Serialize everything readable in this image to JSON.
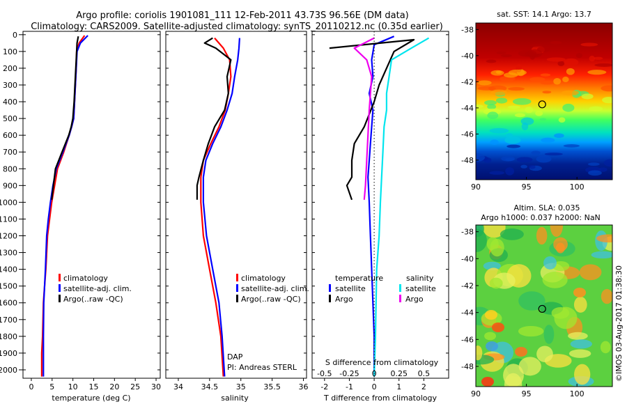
{
  "title": {
    "line1": "Argo profile: coriolis 1901081_111 12-Feb-2011 43.73S 96.56E (DM data)",
    "line2": "Climatology: CARS2009. Satellite-adjusted climatology: synTS_20110212.nc (0.35d earlier)"
  },
  "depth_ticks": [
    "0",
    "100",
    "200",
    "300",
    "400",
    "500",
    "600",
    "700",
    "800",
    "900",
    "1000",
    "1100",
    "1200",
    "1300",
    "1400",
    "1500",
    "1600",
    "1700",
    "1800",
    "1900",
    "2000"
  ],
  "colors": {
    "climatology": "#ff0000",
    "satellite": "#0000ff",
    "argo": "#000000",
    "sal_satellite": "#00e5ee",
    "sal_argo": "#ee00ee"
  },
  "chart_data": [
    {
      "type": "line",
      "xlabel": "temperature (deg C)",
      "xticks": [
        "0",
        "5",
        "10",
        "15",
        "20",
        "25",
        "30"
      ],
      "xlim": [
        -2,
        31
      ],
      "ylim": [
        2050,
        -20
      ],
      "legend": [
        "climatology",
        "satellite-adj. clim.",
        "Argo(..raw -QC)"
      ],
      "legend_position": "lower-center",
      "series": [
        {
          "name": "climatology",
          "color": "red",
          "x": [
            12.8,
            11.5,
            10.9,
            10.8,
            10.6,
            10.4,
            10.2,
            9.7,
            9.1,
            7.8,
            6.3,
            5.6,
            4.9,
            4.4,
            3.9,
            3.5,
            3.2,
            2.9,
            2.7,
            2.5,
            2.5
          ],
          "y": [
            5,
            50,
            100,
            200,
            300,
            400,
            500,
            550,
            600,
            700,
            800,
            900,
            1000,
            1100,
            1200,
            1400,
            1500,
            1600,
            1800,
            1900,
            2040
          ]
        },
        {
          "name": "satellite-adj. clim.",
          "color": "blue",
          "x": [
            13.6,
            11.8,
            11.0,
            10.8,
            10.6,
            10.4,
            10.2,
            9.7,
            9.1,
            7.6,
            6.0,
            5.2,
            4.6,
            4.1,
            3.7,
            3.4,
            3.2,
            3.0,
            2.9,
            2.9,
            2.9
          ],
          "y": [
            5,
            50,
            100,
            200,
            300,
            400,
            500,
            550,
            600,
            700,
            800,
            900,
            1000,
            1100,
            1200,
            1400,
            1500,
            1600,
            1800,
            1900,
            2040
          ]
        },
        {
          "name": "Argo(..raw -QC)",
          "color": "black",
          "x": [
            11.3,
            11.0,
            10.9,
            10.7,
            10.5,
            10.3,
            10.0,
            9.6,
            9.0,
            7.4,
            5.8,
            4.9
          ],
          "y": [
            10,
            50,
            100,
            200,
            300,
            400,
            500,
            550,
            600,
            700,
            800,
            985
          ]
        }
      ]
    },
    {
      "type": "line",
      "xlabel": "salinity",
      "xticks": [
        "34",
        "34.5",
        "35",
        "35.5",
        "36"
      ],
      "xlim": [
        33.8,
        36.05
      ],
      "ylim": [
        2050,
        -20
      ],
      "legend": [
        "climatology",
        "satellite-adj. clim.",
        "Argo(..raw -QC)"
      ],
      "legend_position": "lower-right",
      "annotations": [
        "DAP",
        "PI: Andreas STERL"
      ],
      "series": [
        {
          "name": "climatology",
          "color": "red",
          "x": [
            34.58,
            34.72,
            34.82,
            34.84,
            34.8,
            34.75,
            34.65,
            34.52,
            34.4,
            34.36,
            34.36,
            34.4,
            34.5,
            34.6,
            34.68,
            34.72
          ],
          "y": [
            20,
            80,
            150,
            250,
            350,
            450,
            550,
            650,
            750,
            850,
            1000,
            1200,
            1400,
            1600,
            1800,
            2040
          ]
        },
        {
          "name": "satellite-adj. clim.",
          "color": "blue",
          "x": [
            34.98,
            34.97,
            34.95,
            34.9,
            34.86,
            34.78,
            34.68,
            34.55,
            34.44,
            34.4,
            34.4,
            34.45,
            34.55,
            34.65,
            34.7,
            34.74
          ],
          "y": [
            20,
            80,
            150,
            250,
            350,
            450,
            550,
            650,
            750,
            850,
            1000,
            1200,
            1400,
            1600,
            1800,
            2040
          ]
        },
        {
          "name": "Argo(..raw -QC)",
          "color": "black",
          "x": [
            34.55,
            34.42,
            34.6,
            34.84,
            34.78,
            34.8,
            34.74,
            34.58,
            34.48,
            34.4,
            34.33,
            34.3,
            34.3
          ],
          "y": [
            20,
            50,
            80,
            150,
            250,
            350,
            450,
            550,
            650,
            750,
            850,
            900,
            985
          ]
        }
      ]
    },
    {
      "type": "line",
      "xlabel": "T difference from climatology",
      "xticks": [
        "-2",
        "-1",
        "0",
        "1",
        "2"
      ],
      "xlim": [
        -2.5,
        3
      ],
      "top_xlabel": "S difference from climatology",
      "top_xticks": [
        "-0.5",
        "-0.25",
        "0",
        "0.25",
        "0.5"
      ],
      "ylim": [
        2050,
        -20
      ],
      "legend_title_left": "temperature",
      "legend_title_right": "salinity",
      "legend": [
        "satellite",
        "Argo",
        "satellite",
        "Argo"
      ],
      "legend_position": "lower-center",
      "series": [
        {
          "name": "satellite",
          "quantity": "temperature",
          "color": "blue",
          "x": [
            0.8,
            0.0,
            -0.1,
            -0.05,
            -0.2,
            -0.05,
            -0.1,
            -0.15,
            -0.2,
            -0.25,
            -0.2,
            -0.15,
            -0.1,
            0.0,
            0.0
          ],
          "y": [
            10,
            60,
            150,
            250,
            350,
            450,
            550,
            650,
            750,
            850,
            1000,
            1200,
            1400,
            1800,
            2040
          ]
        },
        {
          "name": "Argo",
          "quantity": "temperature",
          "color": "black",
          "x": [
            -1.8,
            1.6,
            0.8,
            0.5,
            0.2,
            0.0,
            -0.4,
            -0.8,
            -0.9,
            -0.9,
            -1.1,
            -0.9
          ],
          "y": [
            80,
            30,
            100,
            200,
            300,
            400,
            550,
            650,
            750,
            850,
            900,
            985
          ]
        },
        {
          "name": "satellite",
          "quantity": "salinity",
          "color": "cyan",
          "x": [
            2.2,
            1.5,
            0.7,
            0.6,
            0.5,
            0.5,
            0.4,
            0.35,
            0.3,
            0.25,
            0.2,
            0.1,
            0.05,
            0.0
          ],
          "y": [
            20,
            80,
            150,
            250,
            350,
            450,
            550,
            700,
            850,
            1000,
            1200,
            1400,
            1800,
            2040
          ]
        },
        {
          "name": "Argo",
          "quantity": "salinity",
          "color": "magenta",
          "x": [
            0.0,
            -0.8,
            -0.3,
            -0.1,
            -0.15,
            -0.2,
            -0.25,
            -0.3,
            -0.35,
            -0.4
          ],
          "y": [
            20,
            80,
            150,
            250,
            350,
            450,
            600,
            750,
            900,
            985
          ]
        }
      ]
    },
    {
      "type": "heatmap",
      "title": "sat. SST: 14.1  Argo: 13.7",
      "xticks": [
        "90",
        "95",
        "100"
      ],
      "yticks": [
        "-38",
        "-40",
        "-42",
        "-44",
        "-46",
        "-48"
      ],
      "xlim": [
        90,
        103.5
      ],
      "ylim": [
        -49.5,
        -37.5
      ],
      "marker": {
        "lon": 96.56,
        "lat": -43.73
      }
    },
    {
      "type": "heatmap",
      "title": "Altim. SLA: 0.035",
      "subtitle": "Argo h1000: 0.037  h2000: NaN",
      "xticks": [
        "90",
        "95",
        "100"
      ],
      "yticks": [
        "-38",
        "-40",
        "-42",
        "-44",
        "-46",
        "-48"
      ],
      "xlim": [
        90,
        103.5
      ],
      "ylim": [
        -49.5,
        -37.5
      ],
      "marker": {
        "lon": 96.56,
        "lat": -43.73
      }
    }
  ],
  "footer_stamp": "©IMOS 03-Aug-2017 01:38:30"
}
